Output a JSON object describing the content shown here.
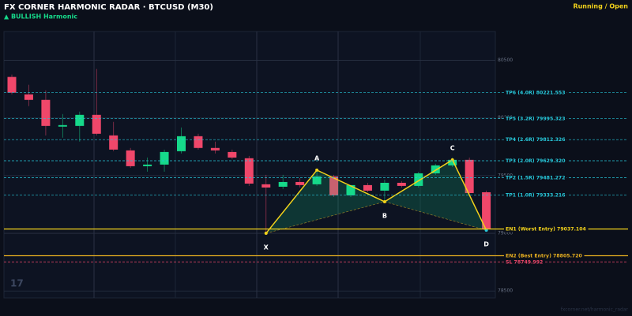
{
  "chart_data": {
    "type": "candlestick",
    "title": "FX CORNER HARMONIC RADAR  ·  BTCUSD (M30)",
    "subtitle": "▲ BULLISH  Harmonic",
    "status": "Running / Open",
    "logo": "17",
    "watermark": "fxcorner.net/harmonic_radar",
    "up_color": "#16d98a",
    "down_color": "#f0476a",
    "pattern_color": "#f2d21b",
    "ylim": [
      78440,
      80750
    ],
    "yticks": [
      78500,
      79000,
      79500,
      80000,
      80500
    ],
    "grid": true,
    "candles": [
      {
        "open": 80356,
        "high": 80377,
        "low": 80205,
        "close": 80219
      },
      {
        "open": 80205,
        "high": 80288,
        "low": 80103,
        "close": 80157
      },
      {
        "open": 80157,
        "high": 80240,
        "low": 79849,
        "close": 79931
      },
      {
        "open": 79925,
        "high": 80034,
        "low": 79829,
        "close": 79938
      },
      {
        "open": 79931,
        "high": 80055,
        "low": 79795,
        "close": 80027
      },
      {
        "open": 80027,
        "high": 80425,
        "low": 79849,
        "close": 79863
      },
      {
        "open": 79849,
        "high": 79966,
        "low": 79712,
        "close": 79726
      },
      {
        "open": 79719,
        "high": 79740,
        "low": 79568,
        "close": 79582
      },
      {
        "open": 79582,
        "high": 79657,
        "low": 79534,
        "close": 79596
      },
      {
        "open": 79596,
        "high": 79726,
        "low": 79534,
        "close": 79705
      },
      {
        "open": 79712,
        "high": 79918,
        "low": 79692,
        "close": 79842
      },
      {
        "open": 79842,
        "high": 79863,
        "low": 79726,
        "close": 79740
      },
      {
        "open": 79740,
        "high": 79795,
        "low": 79692,
        "close": 79719
      },
      {
        "open": 79705,
        "high": 79726,
        "low": 79644,
        "close": 79657
      },
      {
        "open": 79651,
        "high": 79671,
        "low": 79411,
        "close": 79431
      },
      {
        "open": 79425,
        "high": 79507,
        "low": 79000,
        "close": 79397
      },
      {
        "open": 79404,
        "high": 79507,
        "low": 79384,
        "close": 79445
      },
      {
        "open": 79445,
        "high": 79479,
        "low": 79397,
        "close": 79418
      },
      {
        "open": 79425,
        "high": 79548,
        "low": 79411,
        "close": 79493
      },
      {
        "open": 79493,
        "high": 79507,
        "low": 79315,
        "close": 79329
      },
      {
        "open": 79329,
        "high": 79418,
        "low": 79315,
        "close": 79418
      },
      {
        "open": 79418,
        "high": 79438,
        "low": 79356,
        "close": 79370
      },
      {
        "open": 79370,
        "high": 79466,
        "low": 79274,
        "close": 79438
      },
      {
        "open": 79438,
        "high": 79452,
        "low": 79397,
        "close": 79411
      },
      {
        "open": 79411,
        "high": 79534,
        "low": 79397,
        "close": 79520
      },
      {
        "open": 79520,
        "high": 79603,
        "low": 79507,
        "close": 79589
      },
      {
        "open": 79589,
        "high": 79657,
        "low": 79575,
        "close": 79637
      },
      {
        "open": 79637,
        "high": 79657,
        "low": 79336,
        "close": 79349
      },
      {
        "open": 79356,
        "high": 79370,
        "low": 79027,
        "close": 79041
      }
    ],
    "pattern": [
      {
        "label": "X",
        "x": 15,
        "value": 79000
      },
      {
        "label": "A",
        "x": 18,
        "value": 79548
      },
      {
        "label": "B",
        "x": 22,
        "value": 79274
      },
      {
        "label": "C",
        "x": 26,
        "value": 79637
      },
      {
        "label": "D",
        "x": 28,
        "value": 79027
      }
    ],
    "levels": [
      {
        "label": "TP6 (4.0R)  80221.553",
        "value": 80221.553,
        "color": "#27c7d9",
        "dashed": true
      },
      {
        "label": "TP5 (3.2R)  79995.323",
        "value": 79995.323,
        "color": "#27c7d9",
        "dashed": true
      },
      {
        "label": "TP4 (2.6R)  79812.326",
        "value": 79812.326,
        "color": "#27c7d9",
        "dashed": true
      },
      {
        "label": "TP3 (2.0R)  79629.320",
        "value": 79629.32,
        "color": "#27c7d9",
        "dashed": true
      },
      {
        "label": "TP2 (1.5R)  79481.272",
        "value": 79481.272,
        "color": "#27c7d9",
        "dashed": true
      },
      {
        "label": "TP1 (1.0R)  79333.216",
        "value": 79333.216,
        "color": "#27c7d9",
        "dashed": true
      },
      {
        "label": "EN1 (Worst Entry)  79037.104",
        "value": 79037.104,
        "color": "#f2d21b",
        "dashed": false
      },
      {
        "label": "EN2 (Best Entry)  78805.720",
        "value": 78805.72,
        "color": "#e8b020",
        "dashed": false
      },
      {
        "label": "SL  78749.992",
        "value": 78749.992,
        "color": "#f0476a",
        "dashed": true
      }
    ]
  }
}
